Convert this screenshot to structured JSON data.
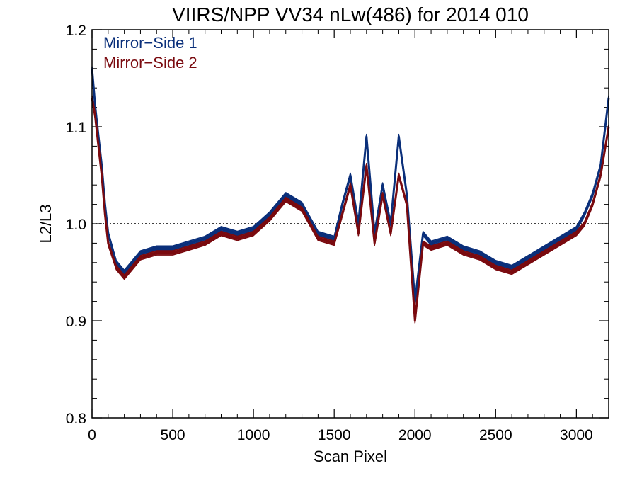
{
  "chart_data": {
    "type": "line",
    "title": "VIIRS/NPP VV34 nLw(486) for 2014 010",
    "xlabel": "Scan Pixel",
    "ylabel": "L2/L3",
    "xlim": [
      0,
      3200
    ],
    "ylim": [
      0.8,
      1.2
    ],
    "x_ticks": [
      0,
      500,
      1000,
      1500,
      2000,
      2500,
      3000
    ],
    "y_ticks": [
      0.8,
      0.9,
      1.0,
      1.1,
      1.2
    ],
    "x_tick_labels": [
      "0",
      "500",
      "1000",
      "1500",
      "2000",
      "2500",
      "3000"
    ],
    "y_tick_labels": [
      "0.8",
      "0.9",
      "1.0",
      "1.1",
      "1.2"
    ],
    "reference_line": {
      "y": 1.0,
      "style": "dotted",
      "color": "#000000"
    },
    "legend_position": "top-left",
    "series": [
      {
        "name": "Mirror−Side 1",
        "color": "#0a2f7a",
        "x": [
          0,
          20,
          40,
          60,
          80,
          100,
          150,
          200,
          250,
          300,
          400,
          500,
          600,
          700,
          800,
          900,
          1000,
          1100,
          1200,
          1300,
          1400,
          1500,
          1550,
          1600,
          1650,
          1700,
          1750,
          1800,
          1850,
          1900,
          1950,
          2000,
          2050,
          2100,
          2200,
          2300,
          2400,
          2500,
          2600,
          2700,
          2800,
          2900,
          3000,
          3050,
          3100,
          3150,
          3200
        ],
        "y": [
          1.16,
          1.12,
          1.09,
          1.06,
          1.02,
          0.99,
          0.96,
          0.95,
          0.96,
          0.97,
          0.975,
          0.975,
          0.98,
          0.985,
          0.995,
          0.99,
          0.995,
          1.01,
          1.03,
          1.02,
          0.99,
          0.985,
          1.02,
          1.05,
          1.0,
          1.09,
          0.99,
          1.04,
          1.0,
          1.09,
          1.03,
          0.92,
          0.99,
          0.98,
          0.985,
          0.975,
          0.97,
          0.96,
          0.955,
          0.965,
          0.975,
          0.985,
          0.995,
          1.01,
          1.03,
          1.06,
          1.13
        ]
      },
      {
        "name": "Mirror−Side 2",
        "color": "#7a0a0f",
        "x": [
          0,
          20,
          40,
          60,
          80,
          100,
          150,
          200,
          250,
          300,
          400,
          500,
          600,
          700,
          800,
          900,
          1000,
          1100,
          1200,
          1300,
          1400,
          1500,
          1550,
          1600,
          1650,
          1700,
          1750,
          1800,
          1850,
          1900,
          1950,
          2000,
          2050,
          2100,
          2200,
          2300,
          2400,
          2500,
          2600,
          2700,
          2800,
          2900,
          3000,
          3050,
          3100,
          3150,
          3200
        ],
        "y": [
          1.13,
          1.11,
          1.08,
          1.05,
          1.01,
          0.98,
          0.955,
          0.945,
          0.955,
          0.965,
          0.97,
          0.97,
          0.975,
          0.98,
          0.99,
          0.985,
          0.99,
          1.005,
          1.025,
          1.015,
          0.985,
          0.98,
          1.01,
          1.04,
          0.99,
          1.06,
          0.98,
          1.03,
          0.99,
          1.05,
          1.02,
          0.9,
          0.98,
          0.975,
          0.98,
          0.97,
          0.965,
          0.955,
          0.95,
          0.96,
          0.97,
          0.98,
          0.99,
          1.0,
          1.02,
          1.05,
          1.1
        ]
      }
    ]
  }
}
